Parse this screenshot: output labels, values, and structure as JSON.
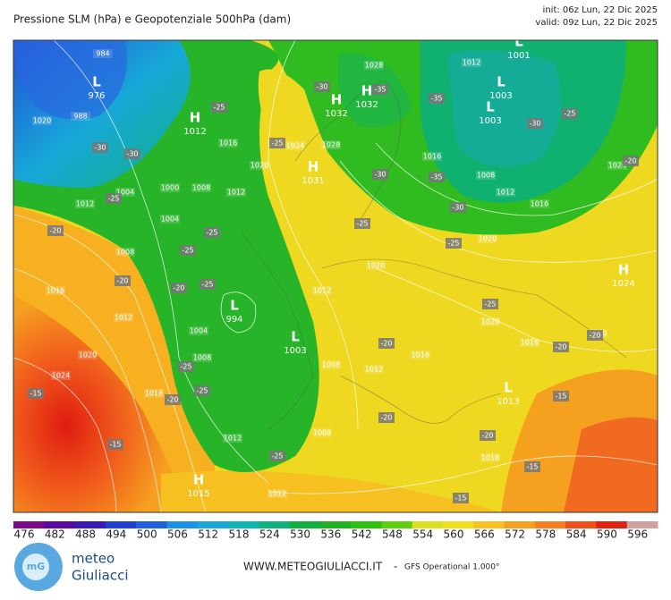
{
  "header": {
    "title": "Pressione SLM (hPa) e Geopotenziale 500hPa (dam)",
    "init": "init: 06z Lun, 22 Dic 2025",
    "valid": "valid: 09z Lun, 22 Dic 2025"
  },
  "centers": [
    {
      "letter": "L",
      "value": 976
    },
    {
      "letter": "H",
      "value": 1012
    },
    {
      "letter": "L",
      "value": 1001
    },
    {
      "letter": "L",
      "value": 1003
    },
    {
      "letter": "L",
      "value": 1003
    },
    {
      "letter": "H",
      "value": 1032
    },
    {
      "letter": "H",
      "value": 1032
    },
    {
      "letter": "H",
      "value": 1031
    },
    {
      "letter": "L",
      "value": 994
    },
    {
      "letter": "L",
      "value": 1003
    },
    {
      "letter": "H",
      "value": 1015
    },
    {
      "letter": "H",
      "value": 1024
    },
    {
      "letter": "L",
      "value": 1013
    }
  ],
  "isobar_labels": [
    984,
    988,
    1020,
    1028,
    1012,
    1016,
    1024,
    1028,
    1020,
    1008,
    1012,
    1016,
    1020,
    1024,
    1016,
    1004,
    1008,
    1012,
    1000,
    1004,
    1012,
    1008,
    1016,
    1012,
    1020,
    1024,
    1016,
    1020,
    1012,
    1004,
    1008,
    1008,
    1012,
    1016,
    1016,
    1020,
    1020,
    1016,
    1012,
    1008,
    1012
  ],
  "temperature_labels": [
    -30,
    -30,
    -25,
    -25,
    -20,
    -20,
    -20,
    -25,
    -25,
    -25,
    -25,
    -30,
    -35,
    -35,
    -30,
    -25,
    -20,
    -30,
    -35,
    -30,
    -25,
    -25,
    -25,
    -20,
    -20,
    -20,
    -15,
    -15,
    -15,
    -15,
    -15,
    -20,
    -20,
    -25,
    -20,
    -25,
    -25
  ],
  "colorbar": {
    "values": [
      476,
      482,
      488,
      494,
      500,
      506,
      512,
      518,
      524,
      530,
      536,
      542,
      548,
      554,
      560,
      566,
      572,
      578,
      584,
      590,
      596
    ],
    "colors": [
      "#7a0a8a",
      "#5a0aa0",
      "#3a1ab4",
      "#2040d0",
      "#1f5fe0",
      "#1e90e8",
      "#18a8d8",
      "#10b4b0",
      "#10b080",
      "#10b040",
      "#20b020",
      "#30c010",
      "#60cf10",
      "#d8e020",
      "#f0e020",
      "#f6c020",
      "#f6a020",
      "#f68020",
      "#f05020",
      "#e02010",
      "#d0a0a0"
    ]
  },
  "footer": {
    "logo_top": "meteo",
    "logo_bottom": "Giuliacci",
    "site": "WWW.METEOGIULIACCI.IT",
    "model": "GFS Operational 1.000°"
  }
}
